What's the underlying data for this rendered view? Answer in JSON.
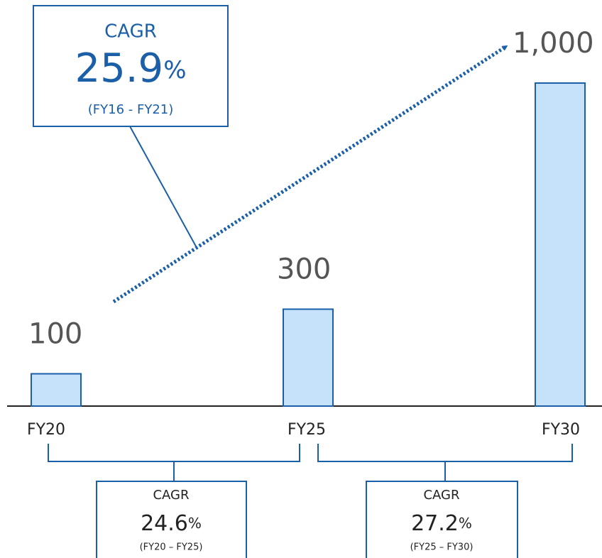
{
  "chart_data": {
    "type": "bar",
    "categories": [
      "FY20",
      "FY25",
      "FY30"
    ],
    "values": [
      100,
      300,
      1000
    ],
    "value_labels": [
      "100",
      "300",
      "1,000"
    ],
    "color": "#c6e2fb",
    "ylim": [
      0,
      1000
    ],
    "annotations": [
      {
        "title": "CAGR",
        "rate": "25.9",
        "unit": "%",
        "period": "(FY16 - FY21)"
      },
      {
        "title": "CAGR",
        "rate": "24.6",
        "unit": "%",
        "period": "(FY20 – FY25)"
      },
      {
        "title": "CAGR",
        "rate": "27.2",
        "unit": "%",
        "period": "(FY25 – FY30)"
      }
    ]
  }
}
